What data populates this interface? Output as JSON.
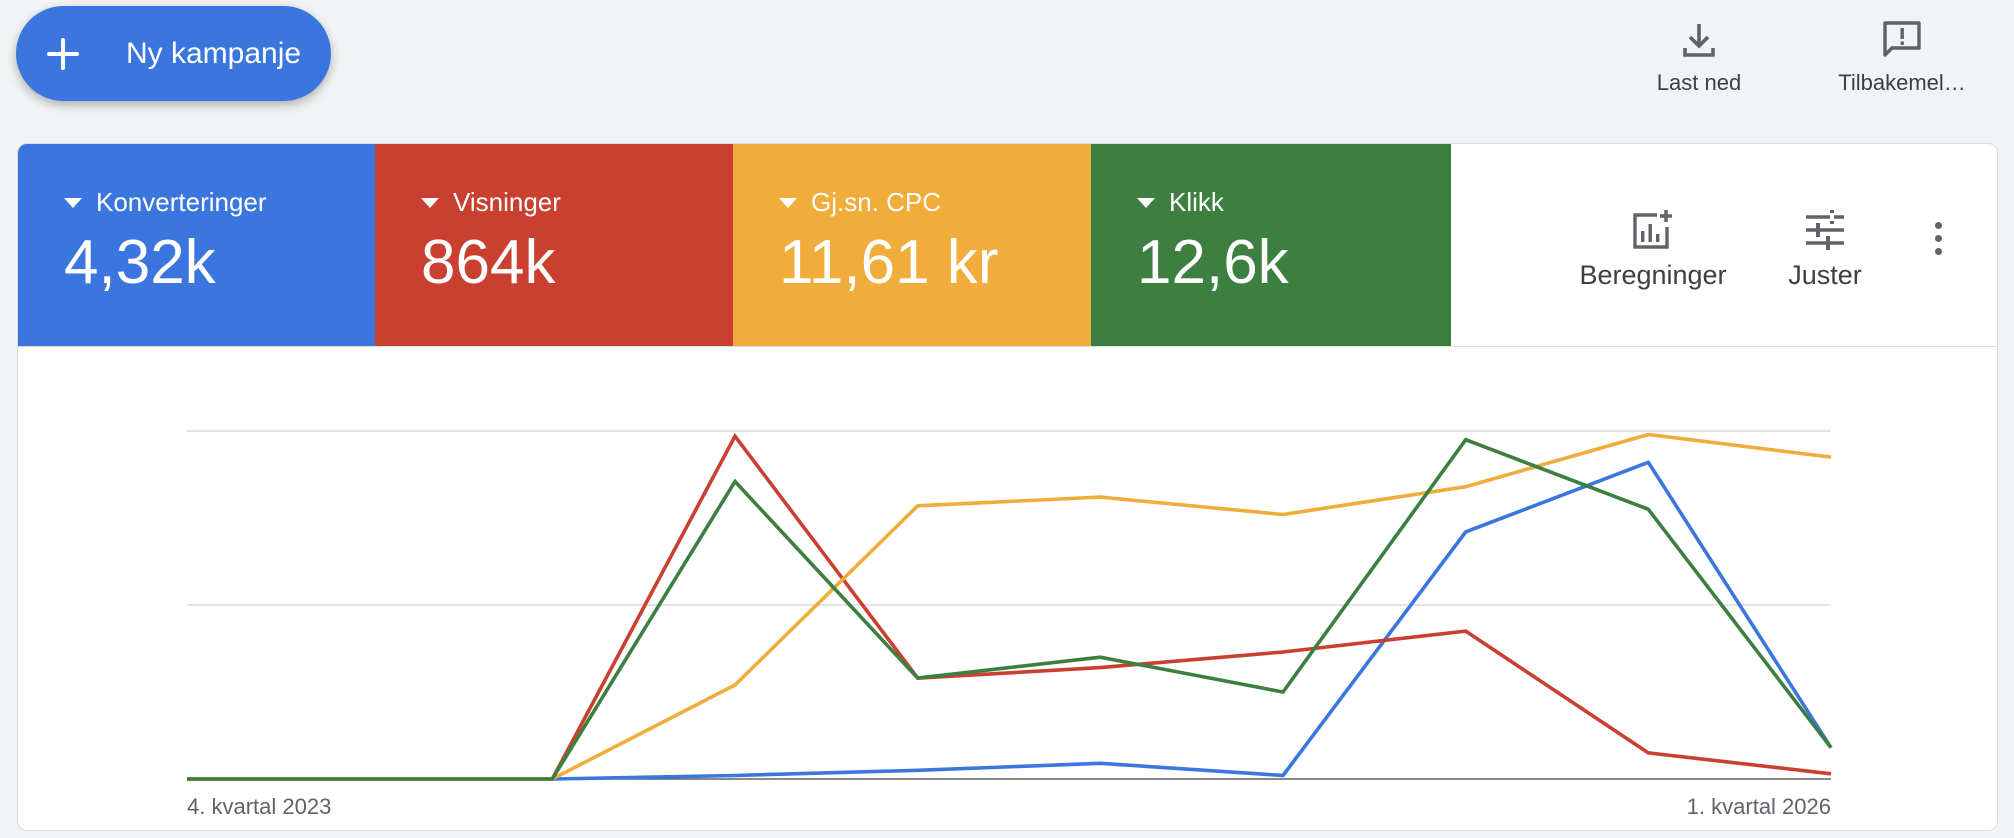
{
  "header": {
    "new_campaign_label": "Ny kampanje",
    "actions": [
      {
        "label": "Last ned",
        "icon": "download-icon"
      },
      {
        "label": "Tilbakemel…",
        "icon": "feedback-icon"
      }
    ]
  },
  "metrics": [
    {
      "label": "Konverteringer",
      "value": "4,32k",
      "color": "#3a76dd"
    },
    {
      "label": "Visninger",
      "value": "864k",
      "color": "#c93f30"
    },
    {
      "label": "Gj.sn. CPC",
      "value": "11,61 kr",
      "color": "#f0ad3c"
    },
    {
      "label": "Klikk",
      "value": "12,6k",
      "color": "#3d7f41"
    }
  ],
  "tools": {
    "metrics_label": "Beregninger",
    "adjust_label": "Juster",
    "metrics_icon": "add-chart-icon",
    "adjust_icon": "tune-icon",
    "more_icon": "more-vert-icon"
  },
  "chart_data": {
    "type": "line",
    "x": [
      0,
      1,
      2,
      3,
      4,
      5,
      6,
      7,
      8,
      9
    ],
    "x_tick_labels": [
      {
        "x": 0,
        "label": "4. kvartal 2023"
      },
      {
        "x": 9,
        "label": "1. kvartal 2026"
      }
    ],
    "ylim": [
      0,
      1
    ],
    "gridlines": [
      0,
      0.5,
      1.0
    ],
    "series": [
      {
        "metric": "Konverteringer",
        "color": "#3a76dd",
        "values": [
          0,
          0,
          0,
          0.01,
          0.025,
          0.045,
          0.01,
          0.71,
          0.91,
          0.09
        ]
      },
      {
        "metric": "Visninger",
        "color": "#c93f30",
        "values": [
          0,
          0,
          0,
          0.985,
          0.29,
          0.32,
          0.365,
          0.425,
          0.075,
          0.015
        ]
      },
      {
        "metric": "Gj.sn. CPC",
        "color": "#f0ad3c",
        "values": [
          0,
          0,
          0,
          0.27,
          0.785,
          0.81,
          0.76,
          0.84,
          0.99,
          0.925
        ]
      },
      {
        "metric": "Klikk",
        "color": "#3d7f41",
        "values": [
          0,
          0,
          0,
          0.855,
          0.29,
          0.35,
          0.25,
          0.975,
          0.775,
          0.09
        ]
      }
    ]
  }
}
